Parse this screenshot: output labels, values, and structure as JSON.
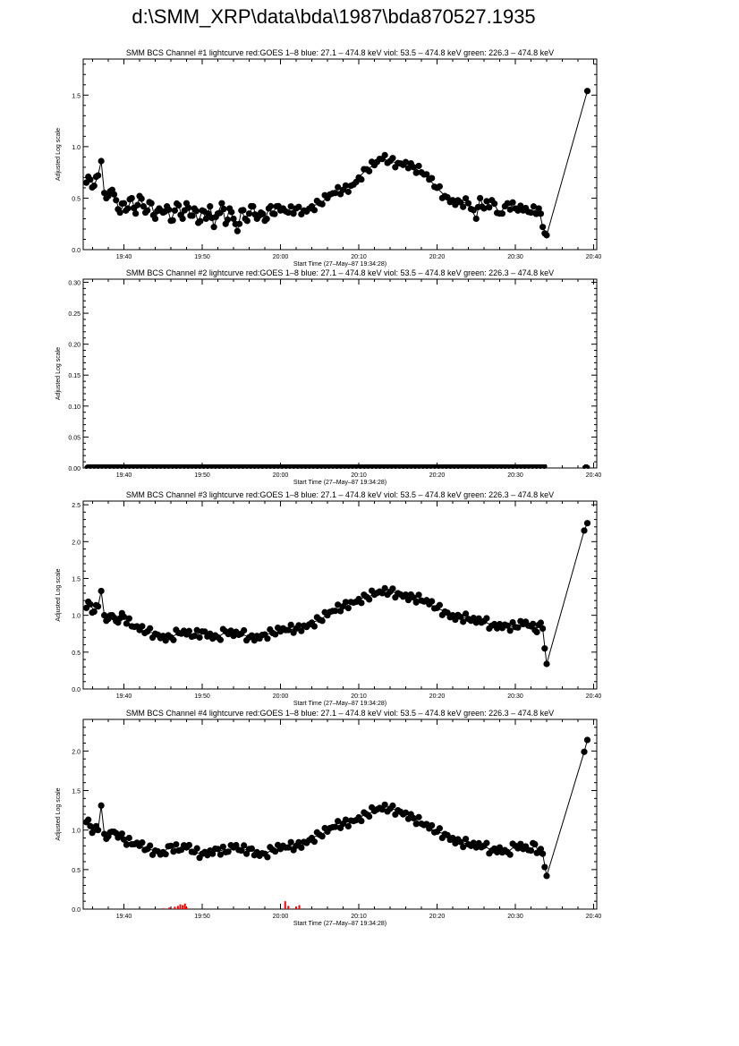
{
  "page": {
    "title": "d:\\SMM_XRP\\data\\bda\\1987\\bda870527.1935"
  },
  "colors": {
    "foreground": "#000000",
    "goes": "#ff0000",
    "background": "#ffffff"
  },
  "chart_data": [
    {
      "type": "scatter",
      "title": "SMM BCS Channel #1 lightcurve  red:GOES 1–8  blue: 27.1 – 474.8 keV  viol: 53.5 – 474.8 keV  green: 226.3 – 474.8 keV",
      "xlabel": "Start Time (27–May–87 19:34:28)",
      "ylabel": "Adjusted Log scale",
      "xlim": [
        34.8,
        100.4
      ],
      "ylim": [
        0,
        1.85
      ],
      "xticks": [
        40,
        50,
        60,
        70,
        80,
        90,
        100
      ],
      "xticklabels": [
        "19:40",
        "19:50",
        "20:00",
        "20:10",
        "20:20",
        "20:30",
        "20:40"
      ],
      "yticks": [
        0,
        0.5,
        1.0,
        1.5
      ],
      "yticklabels": [
        "0.0",
        "0.5",
        "1.0",
        "1.5"
      ],
      "series": [
        {
          "style": "line-markers",
          "x": [
            35.2,
            35.7,
            36.2,
            36.7,
            37.1,
            37.5,
            38.0,
            38.5,
            39.0,
            39.5,
            40.0,
            40.5,
            41.0,
            41.5,
            42.0,
            42.5,
            43.0,
            43.5,
            44.0,
            44.5,
            45.0,
            45.5,
            46.0,
            46.5,
            47.0,
            47.5,
            48.0,
            48.5,
            49.0,
            49.5,
            50.0,
            50.5,
            51.0,
            51.5,
            52.0,
            52.5,
            53.0,
            53.5,
            54.0,
            54.5,
            55.0,
            55.5,
            56.0,
            56.5,
            57.0,
            57.5,
            58.0,
            58.5,
            59.0,
            59.5,
            60.0,
            61.0,
            62.0,
            63.0,
            64.0,
            65.0,
            66.0,
            67.0,
            68.0,
            69.0,
            70.0,
            71.0,
            72.0,
            73.0,
            74.0,
            75.0,
            76.0,
            77.0,
            78.0,
            79.0,
            80.0,
            81.0,
            82.0,
            83.0,
            84.0,
            85.0,
            85.5,
            86.0,
            87.0,
            88.0,
            89.0,
            90.0,
            91.0,
            92.0,
            93.0,
            93.5,
            94.0,
            99.2
          ],
          "y": [
            0.65,
            0.68,
            0.62,
            0.72,
            0.86,
            0.55,
            0.52,
            0.58,
            0.48,
            0.36,
            0.45,
            0.4,
            0.5,
            0.35,
            0.52,
            0.42,
            0.38,
            0.45,
            0.3,
            0.4,
            0.36,
            0.42,
            0.28,
            0.38,
            0.43,
            0.3,
            0.45,
            0.33,
            0.4,
            0.26,
            0.38,
            0.3,
            0.42,
            0.22,
            0.35,
            0.45,
            0.25,
            0.4,
            0.3,
            0.18,
            0.38,
            0.3,
            0.35,
            0.42,
            0.3,
            0.36,
            0.28,
            0.4,
            0.35,
            0.42,
            0.38,
            0.36,
            0.4,
            0.38,
            0.42,
            0.45,
            0.5,
            0.55,
            0.58,
            0.62,
            0.7,
            0.78,
            0.82,
            0.88,
            0.86,
            0.84,
            0.85,
            0.8,
            0.75,
            0.68,
            0.6,
            0.52,
            0.48,
            0.46,
            0.45,
            0.3,
            0.5,
            0.4,
            0.48,
            0.35,
            0.45,
            0.4,
            0.38,
            0.36,
            0.4,
            0.22,
            0.14,
            1.54
          ]
        }
      ]
    },
    {
      "type": "scatter",
      "title": "SMM BCS Channel #2 lightcurve  red:GOES 1–8  blue: 27.1 – 474.8 keV  viol: 53.5 – 474.8 keV  green: 226.3 – 474.8 keV",
      "xlabel": "Start Time (27–May–87 19:34:28)",
      "ylabel": "Adjusted Log scale",
      "xlim": [
        34.8,
        100.4
      ],
      "ylim": [
        0,
        0.305
      ],
      "xticks": [
        40,
        50,
        60,
        70,
        80,
        90,
        100
      ],
      "xticklabels": [
        "19:40",
        "19:50",
        "20:00",
        "20:10",
        "20:20",
        "20:30",
        "20:40"
      ],
      "yticks": [
        0,
        0.05,
        0.1,
        0.15,
        0.2,
        0.25,
        0.3
      ],
      "yticklabels": [
        "0.00",
        "0.05",
        "0.10",
        "0.15",
        "0.20",
        "0.25",
        "0.30"
      ],
      "series": [
        {
          "style": "baseline-markers",
          "x": [
            35.2,
            94.0
          ],
          "y": [
            0,
            0
          ]
        },
        {
          "style": "baseline-markers",
          "x": [
            98.8,
            99.3
          ],
          "y": [
            0,
            0
          ]
        }
      ]
    },
    {
      "type": "scatter",
      "title": "SMM BCS Channel #3 lightcurve  red:GOES 1–8  blue: 27.1 – 474.8 keV  viol: 53.5 – 474.8 keV  green: 226.3 – 474.8 keV",
      "xlabel": "Start Time (27–May–87 19:34:28)",
      "ylabel": "Adjusted Log scale",
      "xlim": [
        34.8,
        100.4
      ],
      "ylim": [
        0,
        2.55
      ],
      "xticks": [
        40,
        50,
        60,
        70,
        80,
        90,
        100
      ],
      "xticklabels": [
        "19:40",
        "19:50",
        "20:00",
        "20:10",
        "20:20",
        "20:30",
        "20:40"
      ],
      "yticks": [
        0,
        0.5,
        1.0,
        1.5,
        2.0,
        2.5
      ],
      "yticklabels": [
        "0.0",
        "0.5",
        "1.0",
        "1.5",
        "2.0",
        "2.5"
      ],
      "series": [
        {
          "style": "line-markers",
          "x": [
            35.2,
            35.7,
            36.2,
            36.7,
            37.1,
            37.5,
            38.0,
            38.5,
            39.0,
            39.5,
            40.0,
            41.0,
            42.0,
            43.0,
            44.0,
            45.0,
            46.0,
            47.0,
            48.0,
            49.0,
            50.0,
            51.0,
            52.0,
            53.0,
            54.0,
            55.0,
            56.0,
            57.0,
            58.0,
            59.0,
            60.0,
            61.0,
            62.0,
            63.0,
            64.0,
            65.0,
            66.0,
            67.0,
            68.0,
            69.0,
            70.0,
            71.0,
            72.0,
            73.0,
            74.0,
            75.0,
            76.0,
            77.0,
            78.0,
            79.0,
            80.0,
            81.0,
            82.0,
            83.0,
            84.0,
            85.0,
            86.0,
            87.0,
            88.0,
            89.0,
            90.0,
            91.0,
            92.0,
            92.5,
            93.0,
            93.5,
            94.0,
            98.8,
            99.2
          ],
          "y": [
            1.1,
            1.15,
            1.05,
            1.12,
            1.33,
            1.0,
            0.95,
            1.0,
            0.92,
            0.96,
            0.98,
            0.85,
            0.8,
            0.78,
            0.75,
            0.72,
            0.7,
            0.76,
            0.74,
            0.72,
            0.78,
            0.75,
            0.7,
            0.78,
            0.72,
            0.75,
            0.7,
            0.72,
            0.74,
            0.76,
            0.78,
            0.8,
            0.82,
            0.86,
            0.9,
            0.94,
            1.0,
            1.06,
            1.12,
            1.18,
            1.22,
            1.25,
            1.28,
            1.3,
            1.32,
            1.3,
            1.28,
            1.24,
            1.2,
            1.15,
            1.1,
            1.05,
            1.0,
            0.98,
            0.95,
            0.9,
            0.92,
            0.86,
            0.88,
            0.86,
            0.84,
            0.88,
            0.85,
            0.8,
            0.87,
            0.82,
            0.34,
            2.15,
            2.25
          ]
        }
      ]
    },
    {
      "type": "scatter",
      "title": "SMM BCS Channel #4 lightcurve  red:GOES 1–8  blue: 27.1 – 474.8 keV  viol: 53.5 – 474.8 keV  green: 226.3 – 474.8 keV",
      "xlabel": "Start Time (27–May–87 19:34:28)",
      "ylabel": "Adjusted Log scale",
      "xlim": [
        34.8,
        100.4
      ],
      "ylim": [
        0,
        2.4
      ],
      "xticks": [
        40,
        50,
        60,
        70,
        80,
        90,
        100
      ],
      "xticklabels": [
        "19:40",
        "19:50",
        "20:00",
        "20:10",
        "20:20",
        "20:30",
        "20:40"
      ],
      "yticks": [
        0,
        0.5,
        1.0,
        1.5,
        2.0
      ],
      "yticklabels": [
        "0.0",
        "0.5",
        "1.0",
        "1.5",
        "2.0"
      ],
      "series": [
        {
          "style": "line-markers",
          "x": [
            35.2,
            35.7,
            36.2,
            36.7,
            37.1,
            37.5,
            38.0,
            38.5,
            39.0,
            39.5,
            40.0,
            41.0,
            42.0,
            43.0,
            44.0,
            45.0,
            46.0,
            47.0,
            48.0,
            49.0,
            50.0,
            51.0,
            52.0,
            53.0,
            54.0,
            55.0,
            56.0,
            57.0,
            58.0,
            59.0,
            60.0,
            61.0,
            62.0,
            63.0,
            64.0,
            65.0,
            66.0,
            67.0,
            68.0,
            69.0,
            70.0,
            71.0,
            72.0,
            73.0,
            74.0,
            75.0,
            76.0,
            77.0,
            78.0,
            79.0,
            80.0,
            81.0,
            82.0,
            83.0,
            84.0,
            85.0,
            86.0,
            87.0,
            88.0,
            89.0,
            90.0,
            91.0,
            92.0,
            92.5,
            93.0,
            93.5,
            94.0,
            98.8,
            99.2
          ],
          "y": [
            1.1,
            1.05,
            1.0,
            1.0,
            1.31,
            0.95,
            0.92,
            0.98,
            0.96,
            0.92,
            0.88,
            0.82,
            0.8,
            0.76,
            0.74,
            0.72,
            0.8,
            0.74,
            0.78,
            0.72,
            0.7,
            0.74,
            0.76,
            0.72,
            0.78,
            0.74,
            0.76,
            0.72,
            0.7,
            0.75,
            0.76,
            0.78,
            0.8,
            0.85,
            0.9,
            0.94,
            0.98,
            1.04,
            1.08,
            1.12,
            1.16,
            1.2,
            1.24,
            1.26,
            1.27,
            1.25,
            1.22,
            1.15,
            1.08,
            1.02,
            0.98,
            0.95,
            0.9,
            0.85,
            0.82,
            0.78,
            0.8,
            0.74,
            0.78,
            0.72,
            0.8,
            0.76,
            0.74,
            0.82,
            0.72,
            0.7,
            0.42,
            1.99,
            2.14
          ]
        },
        {
          "style": "red-bars",
          "x": [
            45.0,
            45.8,
            46.5,
            46.9,
            47.2,
            47.5,
            47.8,
            48.0,
            60.6,
            61.0,
            62.0,
            62.4
          ],
          "y": [
            0.01,
            0.02,
            0.03,
            0.04,
            0.06,
            0.05,
            0.07,
            0.02,
            0.1,
            0.04,
            0.03,
            0.05
          ]
        }
      ]
    }
  ]
}
